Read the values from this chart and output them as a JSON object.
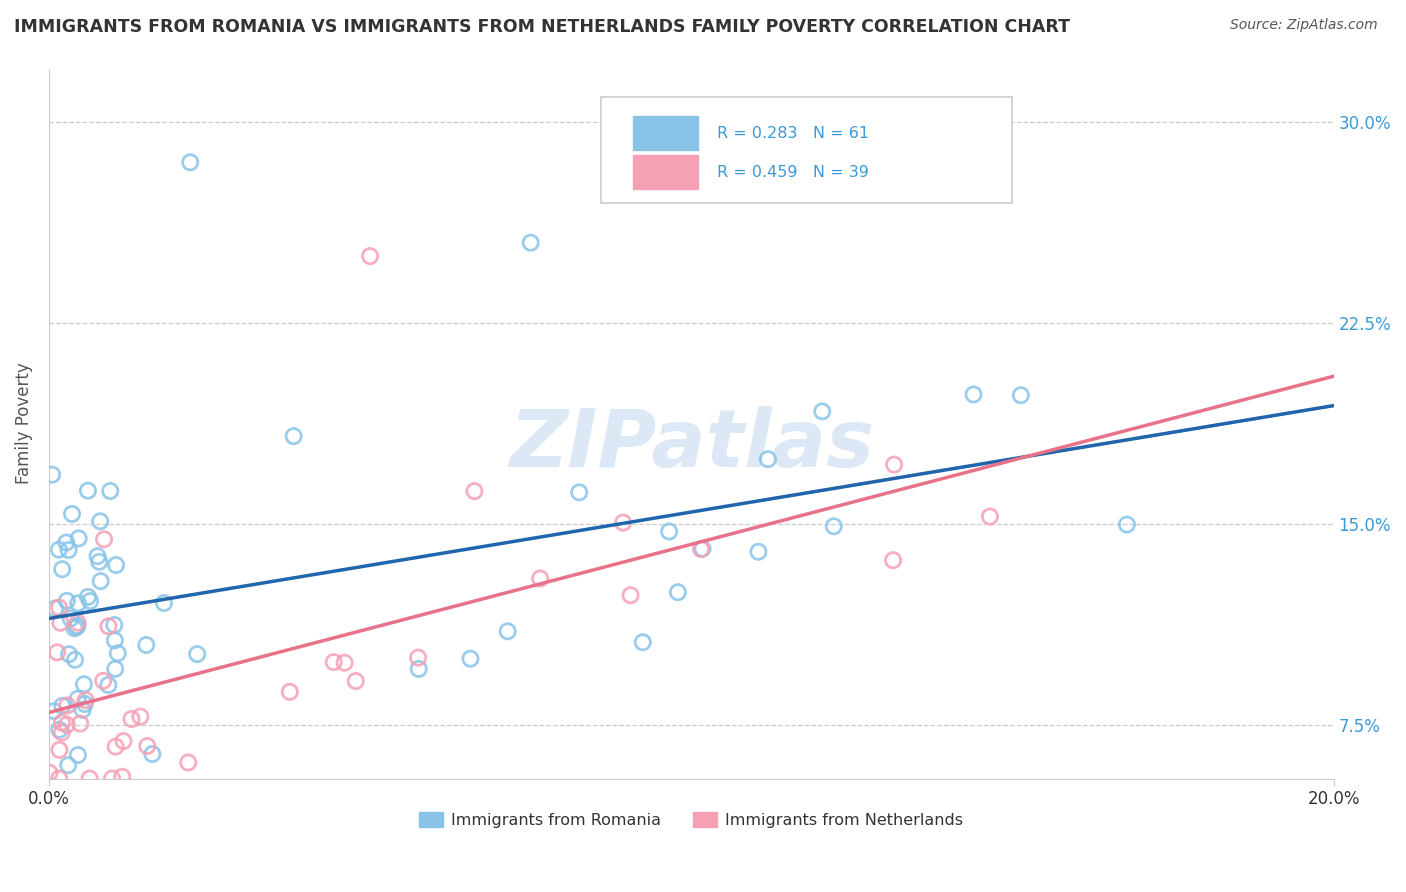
{
  "title": "IMMIGRANTS FROM ROMANIA VS IMMIGRANTS FROM NETHERLANDS FAMILY POVERTY CORRELATION CHART",
  "source": "Source: ZipAtlas.com",
  "ylabel": "Family Poverty",
  "y_ticks": [
    7.5,
    15.0,
    22.5,
    30.0
  ],
  "y_tick_labels": [
    "7.5%",
    "15.0%",
    "22.5%",
    "30.0%"
  ],
  "xlim": [
    0.0,
    20.0
  ],
  "ylim": [
    5.5,
    32.0
  ],
  "R_romania": 0.283,
  "N_romania": 61,
  "R_netherlands": 0.459,
  "N_netherlands": 39,
  "color_romania": "#89c4e8",
  "color_netherlands": "#f5a0b5",
  "color_trendline_romania": "#2166ac",
  "color_trendline_netherlands": "#e8728a",
  "watermark": "ZIPatlas",
  "watermark_color": "#dce8f5",
  "background_color": "#ffffff",
  "legend_box_color": "#f0f0f0"
}
